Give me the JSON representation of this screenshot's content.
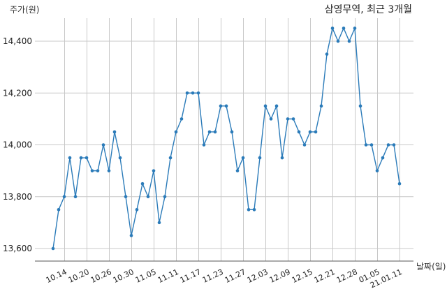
{
  "chart_data": {
    "type": "line",
    "title": "삼영무역, 최근 3개월",
    "ylabel": "주가(원)",
    "xlabel": "날짜(일)",
    "ylim": [
      13560,
      14520
    ],
    "yticks": [
      13600,
      13800,
      14000,
      14200,
      14400
    ],
    "ytick_labels": [
      "13,600",
      "13,800",
      "14,000",
      "14,200",
      "14,400"
    ],
    "grid": true,
    "color": "#2b7bb9",
    "xtick_labels": [
      "10.14",
      "10.20",
      "10.26",
      "10.30",
      "11.05",
      "11.11",
      "11.17",
      "11.23",
      "11.27",
      "12.03",
      "12.09",
      "12.15",
      "12.21",
      "12.28",
      "01.05",
      "21.01.11"
    ],
    "xtick_index": [
      2,
      6,
      10,
      14,
      18,
      22,
      26,
      30,
      34,
      38,
      42,
      46,
      50,
      54,
      58,
      62
    ],
    "values": [
      13600,
      13750,
      13800,
      13950,
      13800,
      13950,
      13950,
      13900,
      13900,
      14000,
      13900,
      14050,
      13950,
      13800,
      13650,
      13750,
      13850,
      13800,
      13900,
      13700,
      13800,
      13950,
      14050,
      14100,
      14200,
      14200,
      14200,
      14000,
      14050,
      14050,
      14150,
      14150,
      14050,
      13900,
      13950,
      13750,
      13750,
      13950,
      14150,
      14100,
      14150,
      13950,
      14100,
      14100,
      14050,
      14000,
      14050,
      14050,
      14150,
      14350,
      14450,
      14400,
      14450,
      14400,
      14450,
      14150,
      14000,
      14000,
      13900,
      13950,
      14000,
      14000,
      13850
    ]
  }
}
